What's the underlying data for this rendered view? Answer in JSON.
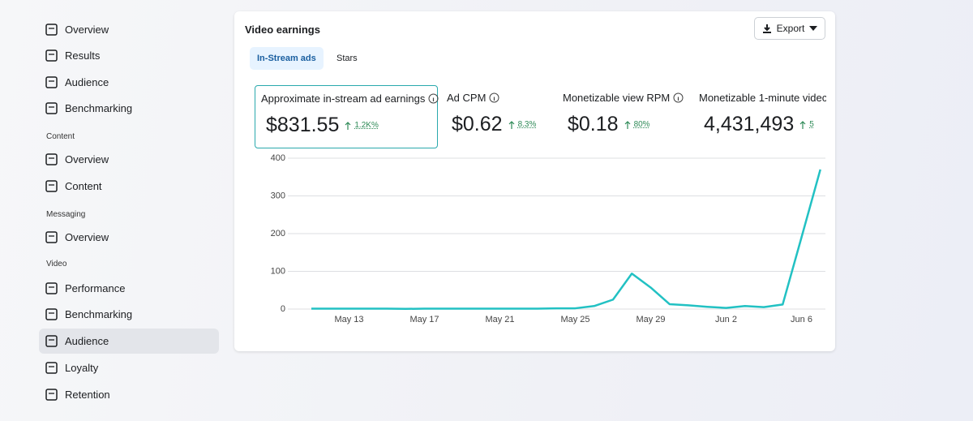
{
  "sidebar": {
    "top_items": [
      {
        "label": "Overview"
      },
      {
        "label": "Results"
      },
      {
        "label": "Audience"
      },
      {
        "label": "Benchmarking"
      }
    ],
    "sections": [
      {
        "heading": "Content",
        "items": [
          {
            "label": "Overview"
          },
          {
            "label": "Content"
          }
        ]
      },
      {
        "heading": "Messaging",
        "items": [
          {
            "label": "Overview"
          }
        ]
      },
      {
        "heading": "Video",
        "items": [
          {
            "label": "Performance"
          },
          {
            "label": "Benchmarking"
          },
          {
            "label": "Audience",
            "selected": true
          },
          {
            "label": "Loyalty"
          },
          {
            "label": "Retention"
          }
        ]
      }
    ]
  },
  "card": {
    "title": "Video earnings",
    "export": "Export",
    "tabs": [
      "In-Stream ads",
      "Stars"
    ],
    "metrics": [
      {
        "label": "Approximate in-stream ad earnings",
        "value": "$831.55",
        "change": "1.2K%"
      },
      {
        "label": "Ad CPM",
        "value": "$0.62",
        "change": "8.3%"
      },
      {
        "label": "Monetizable view RPM",
        "value": "$0.18",
        "change": "80%"
      },
      {
        "label": "Monetizable 1-minute videc",
        "value": "4,431,493",
        "change": "5"
      }
    ]
  },
  "chart_data": {
    "type": "line",
    "categories": [
      null,
      null,
      "May 13",
      null,
      null,
      null,
      "May 17",
      null,
      null,
      null,
      "May 21",
      null,
      null,
      null,
      "May 25",
      null,
      null,
      null,
      "May 29",
      null,
      null,
      null,
      "Jun 2",
      null,
      null,
      null,
      "Jun 6",
      null
    ],
    "values": [
      1,
      1,
      1,
      1,
      1,
      0.5,
      1,
      1,
      1,
      1,
      1,
      1,
      1,
      2,
      2,
      8,
      25,
      94,
      57,
      13,
      10,
      6,
      3,
      8,
      5,
      12,
      190,
      370
    ],
    "color": "#22c1c3",
    "ylim": [
      0,
      400
    ],
    "yticks": [
      0,
      100,
      200,
      300,
      400
    ],
    "grid": true
  }
}
